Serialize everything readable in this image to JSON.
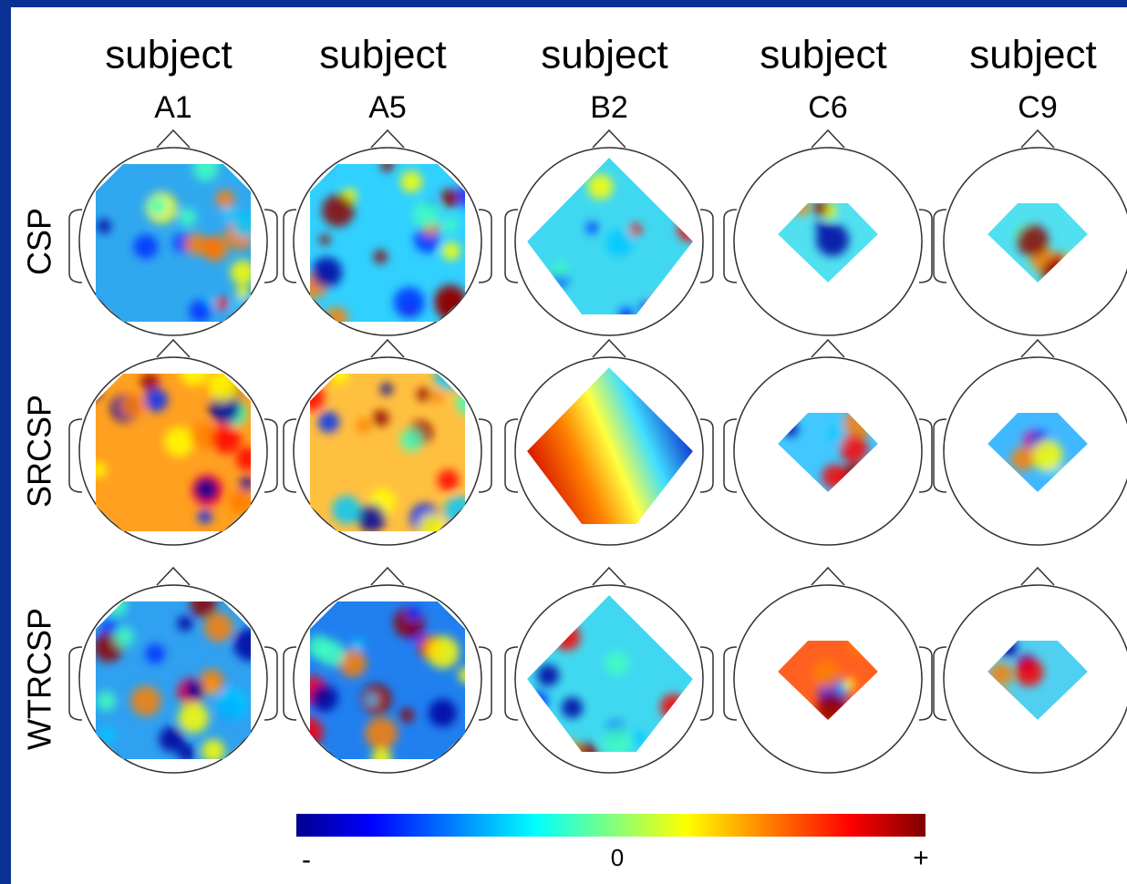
{
  "columns": [
    {
      "title": "subject",
      "label": "A1"
    },
    {
      "title": "subject",
      "label": "A5"
    },
    {
      "title": "subject",
      "label": "B2"
    },
    {
      "title": "subject",
      "label": "C6"
    },
    {
      "title": "subject",
      "label": "C9"
    }
  ],
  "rows": [
    "CSP",
    "SRCSP",
    "WTRCSP"
  ],
  "colorbar": {
    "labels": [
      "-",
      "0",
      "+"
    ]
  }
}
